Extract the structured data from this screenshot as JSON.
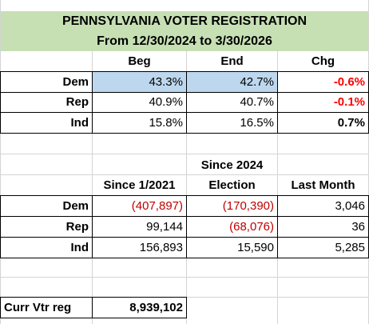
{
  "title": {
    "line1": "PENNSYLVANIA VOTER REGISTRATION",
    "line2": "From 12/30/2024 to 3/30/2026"
  },
  "top_table": {
    "headers": [
      "Beg",
      "End",
      "Chg"
    ],
    "rows": [
      {
        "party": "Dem",
        "beg": "43.3%",
        "end": "42.7%",
        "chg": "-0.6%"
      },
      {
        "party": "Rep",
        "beg": "40.9%",
        "end": "40.7%",
        "chg": "-0.1%"
      },
      {
        "party": "Ind",
        "beg": "15.8%",
        "end": "16.5%",
        "chg": "0.7%"
      }
    ]
  },
  "bottom_table": {
    "header_top": "Since 2024",
    "headers": [
      "Since 1/2021",
      "Election",
      "Last Month"
    ],
    "rows": [
      {
        "party": "Dem",
        "since2021": "(407,897)",
        "election": "(170,390)",
        "last_month": "3,046"
      },
      {
        "party": "Rep",
        "since2021": "99,144",
        "election": "(68,076)",
        "last_month": "36"
      },
      {
        "party": "Ind",
        "since2021": "156,893",
        "election": "15,590",
        "last_month": "5,285"
      }
    ]
  },
  "current": {
    "label": "Curr Vtr reg",
    "value": "8,939,102"
  },
  "colors": {
    "title_bg": "#c6e0b4",
    "highlight_bg": "#bdd7ee",
    "negative_pct": "#ff0000",
    "negative_num": "#c00000"
  }
}
